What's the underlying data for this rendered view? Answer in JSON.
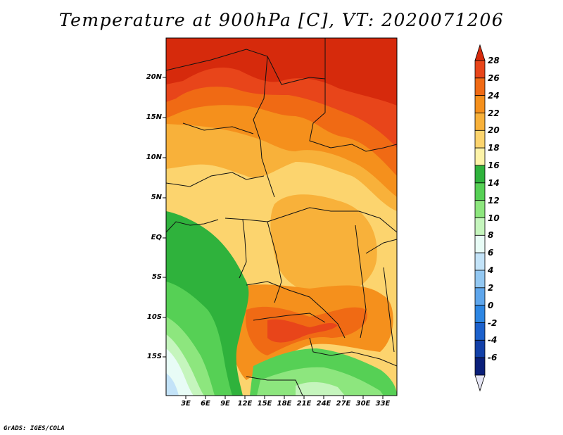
{
  "title": "Temperature at 900hPa [C], VT: 2020071206",
  "credit": "GrADS: IGES/COLA",
  "map": {
    "lat_labels": [
      "20N",
      "15N",
      "10N",
      "5N",
      "EQ",
      "5S",
      "10S",
      "15S"
    ],
    "lon_labels": [
      "3E",
      "6E",
      "9E",
      "12E",
      "15E",
      "18E",
      "21E",
      "24E",
      "27E",
      "30E",
      "33E"
    ]
  },
  "colorbar": {
    "labels": [
      "28",
      "26",
      "24",
      "22",
      "20",
      "18",
      "16",
      "14",
      "12",
      "10",
      "8",
      "6",
      "4",
      "2",
      "0",
      "-2",
      "-4",
      "-6"
    ],
    "colors": [
      "#d62a0c",
      "#e8451a",
      "#f06a14",
      "#f5901c",
      "#f8b13a",
      "#fcd46e",
      "#fdf3a8",
      "#2fb23c",
      "#56d055",
      "#8de67e",
      "#c5f5bd",
      "#e8fcf6",
      "#c3e3f8",
      "#93c8f2",
      "#5ea6ec",
      "#2d86e3",
      "#1c61cc",
      "#1240a8",
      "#0a1f7a",
      "#e6e6f5"
    ]
  }
}
